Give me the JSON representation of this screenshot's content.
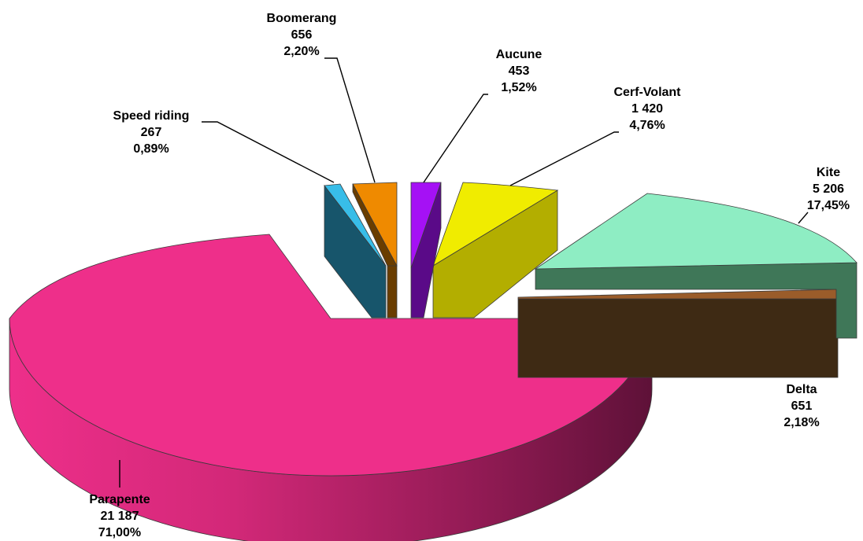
{
  "chart_data": {
    "type": "pie",
    "title": "",
    "style": "3d-exploded",
    "slices": [
      {
        "name": "Parapente",
        "value_label": "21 187",
        "percent_label": "71,00%",
        "value": 21187,
        "percent": 71.0,
        "color": "#ee2f8a",
        "dark": "#5e1138",
        "exploded": false
      },
      {
        "name": "Speed riding",
        "value_label": "267",
        "percent_label": "0,89%",
        "value": 267,
        "percent": 0.89,
        "color": "#38bde8",
        "dark": "#17556b",
        "exploded": true
      },
      {
        "name": "Boomerang",
        "value_label": "656",
        "percent_label": "2,20%",
        "value": 656,
        "percent": 2.2,
        "color": "#ef8a00",
        "dark": "#6a3d00",
        "exploded": true
      },
      {
        "name": "Aucune",
        "value_label": "453",
        "percent_label": "1,52%",
        "value": 453,
        "percent": 1.52,
        "color": "#a511f5",
        "dark": "#5a0a88",
        "exploded": true
      },
      {
        "name": "Cerf-Volant",
        "value_label": "1 420",
        "percent_label": "4,76%",
        "value": 1420,
        "percent": 4.76,
        "color": "#f0ec00",
        "dark": "#b3ae00",
        "exploded": true
      },
      {
        "name": "Kite",
        "value_label": "5 206",
        "percent_label": "17,45%",
        "value": 5206,
        "percent": 17.45,
        "color": "#8eedc3",
        "dark": "#3f7758",
        "exploded": true
      },
      {
        "name": "Delta",
        "value_label": "651",
        "percent_label": "2,18%",
        "value": 651,
        "percent": 2.18,
        "color": "#9a5c2a",
        "dark": "#3e2a14",
        "exploded": true
      }
    ]
  }
}
